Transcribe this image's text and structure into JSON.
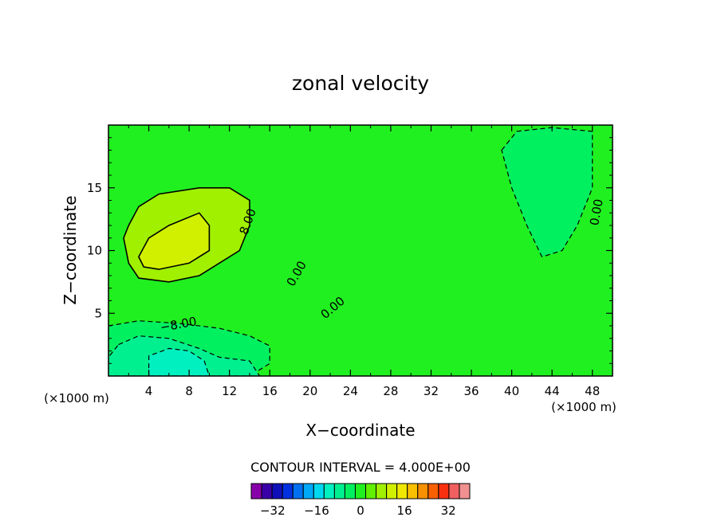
{
  "chart_data": {
    "type": "heatmap",
    "title": "zonal velocity",
    "xlabel": "X−coordinate",
    "ylabel": "Z−coordinate",
    "x_unit": "(×1000 m)",
    "y_unit": "(×1000 m)",
    "xlim": [
      0,
      50
    ],
    "ylim": [
      0,
      20
    ],
    "x_ticks": [
      "4",
      "8",
      "12",
      "16",
      "20",
      "24",
      "28",
      "32",
      "36",
      "40",
      "44",
      "48"
    ],
    "y_ticks": [
      "5",
      "10",
      "15"
    ],
    "contour_interval_text": "CONTOUR INTERVAL = 4.000E+00",
    "contour_labels": [
      "8.00",
      "0.00",
      "0.00",
      "0.00",
      "−8.00"
    ],
    "colorbar": {
      "min": -40,
      "max": 40,
      "step": 4,
      "tick_values": [
        -32,
        -16,
        0,
        16,
        32
      ],
      "tick_labels": [
        "−32",
        "−16",
        "0",
        "16",
        "32"
      ],
      "colors": [
        "#8800aa",
        "#3a00a8",
        "#1010b8",
        "#0030e0",
        "#0070f0",
        "#00a8f8",
        "#00d8f0",
        "#00f0c0",
        "#00f090",
        "#00f060",
        "#20f020",
        "#60f000",
        "#a0f000",
        "#d0f000",
        "#f0e800",
        "#f8c000",
        "#f89000",
        "#f86000",
        "#f83010",
        "#f06060",
        "#f09090"
      ]
    },
    "regions": [
      {
        "level": 8,
        "label": "8 to 12",
        "points": [
          [
            2,
            12
          ],
          [
            3,
            13.5
          ],
          [
            5,
            14.5
          ],
          [
            9,
            15
          ],
          [
            12,
            15
          ],
          [
            14,
            14
          ],
          [
            14,
            12
          ],
          [
            13,
            10
          ],
          [
            11,
            9
          ],
          [
            9,
            8
          ],
          [
            6,
            7.5
          ],
          [
            3,
            7.8
          ],
          [
            2,
            9
          ],
          [
            1.5,
            11
          ]
        ]
      },
      {
        "level": 12,
        "label": "12 to 16",
        "points": [
          [
            3,
            9.5
          ],
          [
            4,
            11
          ],
          [
            6,
            12
          ],
          [
            9,
            13
          ],
          [
            10,
            12
          ],
          [
            10,
            10
          ],
          [
            8,
            9
          ],
          [
            5,
            8.5
          ],
          [
            3.5,
            8.7
          ]
        ]
      },
      {
        "level": -4,
        "label": "-4 to 0",
        "points": [
          [
            39,
            18
          ],
          [
            40.5,
            19.5
          ],
          [
            44,
            19.8
          ],
          [
            48,
            19.5
          ],
          [
            48,
            15
          ],
          [
            46.5,
            12
          ],
          [
            45,
            10
          ],
          [
            43,
            9.5
          ],
          [
            41.5,
            12
          ],
          [
            40,
            15
          ]
        ]
      },
      {
        "level": -4,
        "label": "-4 to 0",
        "points": [
          [
            0,
            4
          ],
          [
            3,
            4.4
          ],
          [
            7,
            4.2
          ],
          [
            11,
            3.8
          ],
          [
            14,
            3.2
          ],
          [
            16,
            2.4
          ],
          [
            16,
            1
          ],
          [
            14,
            0
          ],
          [
            0,
            0
          ]
        ]
      },
      {
        "level": -8,
        "label": "-8 to -4",
        "points": [
          [
            1,
            2.5
          ],
          [
            3,
            3.2
          ],
          [
            6,
            3
          ],
          [
            9,
            2.2
          ],
          [
            11,
            1.5
          ],
          [
            14,
            1.2
          ],
          [
            15,
            0
          ],
          [
            0,
            0
          ],
          [
            0,
            1.5
          ]
        ]
      },
      {
        "level": -12,
        "label": "-12 to -8",
        "points": [
          [
            4,
            0
          ],
          [
            4,
            1.6
          ],
          [
            6,
            2.2
          ],
          [
            8,
            2
          ],
          [
            9.5,
            1.2
          ],
          [
            10,
            0
          ]
        ]
      }
    ]
  }
}
